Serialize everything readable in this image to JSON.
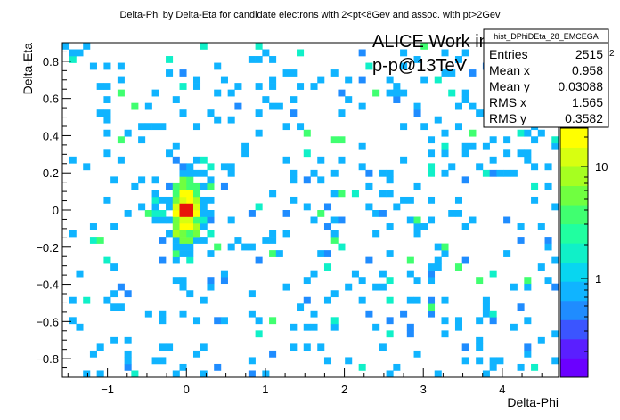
{
  "chart_data": {
    "type": "heatmap",
    "title": "Delta-Phi by Delta-Eta for candidate electrons with 2<pt<8Gev and assoc. with pt>2Gev",
    "xlabel": "Delta-Phi",
    "ylabel": "Delta-Eta",
    "xlim": [
      -1.571,
      4.712
    ],
    "ylim": [
      -0.9,
      0.9
    ],
    "x_ticks": [
      "−1",
      "0",
      "1",
      "2",
      "3",
      "4"
    ],
    "y_ticks": [
      "−0.8",
      "−0.6",
      "−0.4",
      "−0.2",
      "0",
      "0.2",
      "0.4",
      "0.6",
      "0.8"
    ],
    "z_scale": "log",
    "z_ticks": [
      "1",
      "10"
    ],
    "z_max_label": "2",
    "palette": [
      "#6b00ff",
      "#5a1fff",
      "#3b55ff",
      "#1f8cff",
      "#10b4ff",
      "#08d6f0",
      "#10f0c8",
      "#20ffa0",
      "#40ff70",
      "#70ff40",
      "#a6ff20",
      "#d8ff10",
      "#ffff00"
    ],
    "overlay_text": [
      "ALICE Work in Progress",
      "p-p@13TeV"
    ],
    "bins": {
      "nx": 72,
      "ny": 50,
      "peak": [
        0.0,
        0.0
      ]
    },
    "stats": {
      "name": "hist_DPhiDEta_28_EMCEGA",
      "rows": [
        {
          "label": "Entries",
          "value": "2515"
        },
        {
          "label": "Mean x",
          "value": "0.958"
        },
        {
          "label": "Mean y",
          "value": "0.03088"
        },
        {
          "label": "RMS x",
          "value": "1.565"
        },
        {
          "label": "RMS y",
          "value": "0.3582"
        }
      ]
    }
  }
}
